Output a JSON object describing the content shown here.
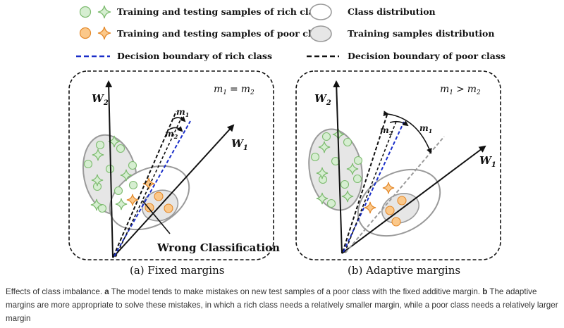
{
  "legend": {
    "rich_samples": "Training and testing samples of rich class",
    "poor_samples": "Training and testing samples of poor class",
    "rich_boundary": "Decision boundary of rich class",
    "class_distribution": "Class distribution",
    "training_distribution": "Training samples distribution",
    "poor_boundary": "Decision boundary of poor class"
  },
  "panel_a": {
    "title": "(a) Fixed margins",
    "w1": "W",
    "w1_sub": "1",
    "w2": "W",
    "w2_sub": "2",
    "m1": "m",
    "m1_sub": "1",
    "m2": "m",
    "m2_sub": "2",
    "condition_lhs": "m",
    "condition_lhs_sub": "1",
    "condition_op": "=",
    "condition_rhs": "m",
    "condition_rhs_sub": "2",
    "wrong_label": "Wrong Classification"
  },
  "panel_b": {
    "title": "(b) Adaptive margins",
    "w1": "W",
    "w1_sub": "1",
    "w2": "W",
    "w2_sub": "2",
    "m1": "m",
    "m1_sub": "1",
    "m2": "m",
    "m2_sub": "2",
    "condition_lhs": "m",
    "condition_lhs_sub": "1",
    "condition_op": ">",
    "condition_rhs": "m",
    "condition_rhs_sub": "2"
  },
  "colors": {
    "rich_fill": "#d6eed1",
    "rich_stroke": "#7dbb6f",
    "poor_fill": "#fbc88a",
    "poor_stroke": "#e4892a",
    "rich_boundary": "#1a2ec8",
    "ellipse_stroke": "#9a9a9a",
    "ellipse_fill": "#e6e6e6"
  },
  "caption": {
    "intro": "Effects of class imbalance.",
    "a_label": "a",
    "a_text": "The model tends to make mistakes on new test samples of a poor class with the fixed additive margin.",
    "b_label": "b",
    "b_text": "The adaptive margins are more appropriate to solve these mistakes, in which a rich class needs a relatively smaller margin, while a poor class needs a relatively larger margin"
  }
}
